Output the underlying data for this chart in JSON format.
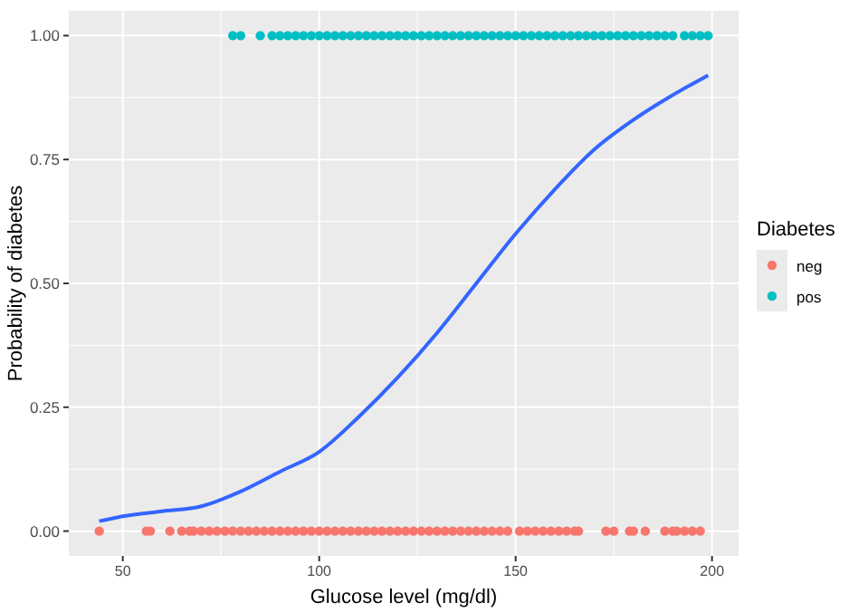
{
  "chart_data": {
    "type": "scatter",
    "xlabel": "Glucose level (mg/dl)",
    "ylabel": "Probability of diabetes",
    "legend_title": "Diabetes",
    "xlim": [
      36.25,
      206.75
    ],
    "ylim": [
      -0.05,
      1.05
    ],
    "xticks": [
      50,
      100,
      150,
      200
    ],
    "yticks": [
      {
        "value": 0,
        "label": "0.00"
      },
      {
        "value": 0.25,
        "label": "0.25"
      },
      {
        "value": 0.5,
        "label": "0.50"
      },
      {
        "value": 0.75,
        "label": "0.75"
      },
      {
        "value": 1,
        "label": "1.00"
      }
    ],
    "grid": true,
    "legend": "right",
    "series": [
      {
        "name": "neg",
        "color": "#f8766d",
        "marker": "circle",
        "x": [
          44,
          56,
          57,
          62,
          65,
          67,
          68,
          70,
          72,
          74,
          76,
          78,
          80,
          82,
          84,
          86,
          88,
          90,
          92,
          94,
          96,
          98,
          100,
          102,
          104,
          106,
          108,
          110,
          112,
          114,
          116,
          118,
          120,
          122,
          124,
          126,
          128,
          130,
          132,
          134,
          136,
          138,
          140,
          142,
          144,
          146,
          148,
          151,
          153,
          155,
          157,
          159,
          161,
          163,
          165,
          166,
          173,
          175,
          179,
          180,
          183,
          188,
          190,
          191,
          193,
          195,
          197
        ],
        "values": [
          0,
          0,
          0,
          0,
          0,
          0,
          0,
          0,
          0,
          0,
          0,
          0,
          0,
          0,
          0,
          0,
          0,
          0,
          0,
          0,
          0,
          0,
          0,
          0,
          0,
          0,
          0,
          0,
          0,
          0,
          0,
          0,
          0,
          0,
          0,
          0,
          0,
          0,
          0,
          0,
          0,
          0,
          0,
          0,
          0,
          0,
          0,
          0,
          0,
          0,
          0,
          0,
          0,
          0,
          0,
          0,
          0,
          0,
          0,
          0,
          0,
          0,
          0,
          0,
          0,
          0,
          0
        ]
      },
      {
        "name": "pos",
        "color": "#00bfc4",
        "marker": "circle",
        "x": [
          78,
          80,
          85,
          88,
          90,
          92,
          94,
          96,
          98,
          100,
          102,
          104,
          106,
          108,
          110,
          112,
          114,
          116,
          118,
          120,
          122,
          124,
          126,
          128,
          130,
          132,
          134,
          136,
          138,
          140,
          142,
          144,
          146,
          148,
          150,
          152,
          154,
          156,
          158,
          160,
          162,
          164,
          166,
          168,
          170,
          172,
          174,
          176,
          178,
          180,
          182,
          184,
          186,
          188,
          190,
          193,
          195,
          197,
          199
        ],
        "values": [
          1,
          1,
          1,
          1,
          1,
          1,
          1,
          1,
          1,
          1,
          1,
          1,
          1,
          1,
          1,
          1,
          1,
          1,
          1,
          1,
          1,
          1,
          1,
          1,
          1,
          1,
          1,
          1,
          1,
          1,
          1,
          1,
          1,
          1,
          1,
          1,
          1,
          1,
          1,
          1,
          1,
          1,
          1,
          1,
          1,
          1,
          1,
          1,
          1,
          1,
          1,
          1,
          1,
          1,
          1,
          1,
          1,
          1,
          1
        ]
      },
      {
        "type": "line",
        "color": "#3366ff",
        "x": [
          44,
          50,
          60,
          70,
          80,
          90,
          100,
          110,
          120,
          130,
          140,
          150,
          160,
          170,
          180,
          190,
          199
        ],
        "values": [
          0.02,
          0.03,
          0.04,
          0.05,
          0.08,
          0.12,
          0.16,
          0.23,
          0.31,
          0.4,
          0.5,
          0.6,
          0.69,
          0.77,
          0.83,
          0.88,
          0.92
        ]
      }
    ]
  }
}
